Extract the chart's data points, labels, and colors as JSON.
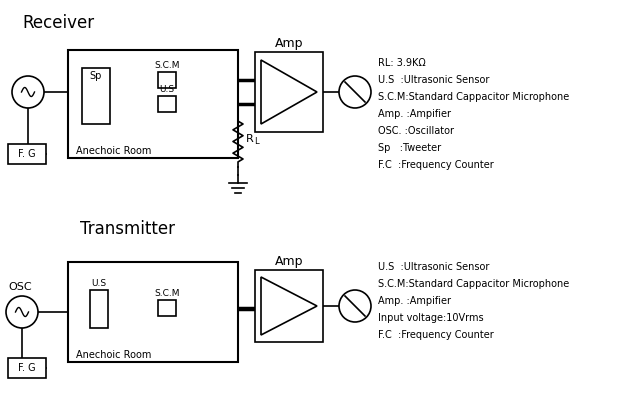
{
  "title_receiver": "Receiver",
  "title_transmitter": "Transmitter",
  "legend_receiver": [
    "RL: 3.9KΩ",
    "U.S  :Ultrasonic Sensor",
    "S.C.M:Standard Cappacitor Microphone",
    "Amp. :Ampifier",
    "OSC. :Oscillator",
    "Sp   :Tweeter",
    "F.C  :Frequency Counter"
  ],
  "legend_transmitter": [
    "U.S  :Ultrasonic Sensor",
    "S.C.M:Standard Cappacitor Microphone",
    "Amp. :Ampifier",
    "Input voltage:10Vrms",
    "F.C  :Frequency Counter"
  ],
  "bg_color": "#ffffff",
  "line_color": "#000000",
  "font_size": 7.0,
  "title_font_size": 12
}
